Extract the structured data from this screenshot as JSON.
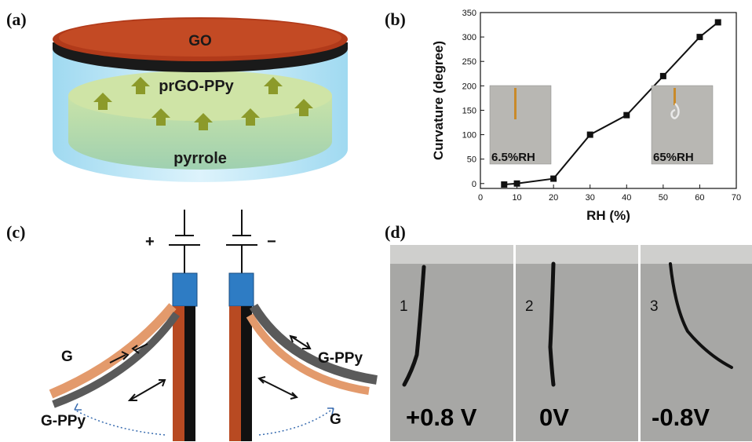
{
  "panels": {
    "a": "(a)",
    "b": "(b)",
    "c": "(c)",
    "d": "(d)"
  },
  "panel_a": {
    "top_layer": "GO",
    "middle_layer": "prGO-PPy",
    "bottom_layer": "pyrrole"
  },
  "panel_b": {
    "inset_left": "6.5%RH",
    "inset_right": "65%RH"
  },
  "chart_data": {
    "type": "line",
    "xlabel": "RH (%)",
    "ylabel": "Curvature (degree)",
    "xlim": [
      0,
      70
    ],
    "ylim": [
      -10,
      350
    ],
    "xticks": [
      0,
      10,
      20,
      30,
      40,
      50,
      60,
      70
    ],
    "yticks": [
      0,
      50,
      100,
      150,
      200,
      250,
      300,
      350
    ],
    "x": [
      6.5,
      10,
      20,
      30,
      40,
      50,
      60,
      65
    ],
    "y": [
      -2,
      0,
      10,
      100,
      140,
      220,
      300,
      330
    ],
    "marker": "square",
    "grid": false
  },
  "panel_c": {
    "plus": "+",
    "minus": "−",
    "left_outer": "G",
    "left_inner": "G-PPy",
    "right_outer": "G-PPy",
    "right_inner": "G"
  },
  "panel_d": [
    {
      "num": "1",
      "voltage": "+0.8 V"
    },
    {
      "num": "2",
      "voltage": "0V"
    },
    {
      "num": "3",
      "voltage": "-0.8V"
    }
  ],
  "colors": {
    "go_red": "#b13a1a",
    "electrode_blue": "#2e7cc4",
    "film_orange": "#e39a6c",
    "film_gray": "#5a5a5a",
    "arrow_olive": "#8c9a2a"
  }
}
